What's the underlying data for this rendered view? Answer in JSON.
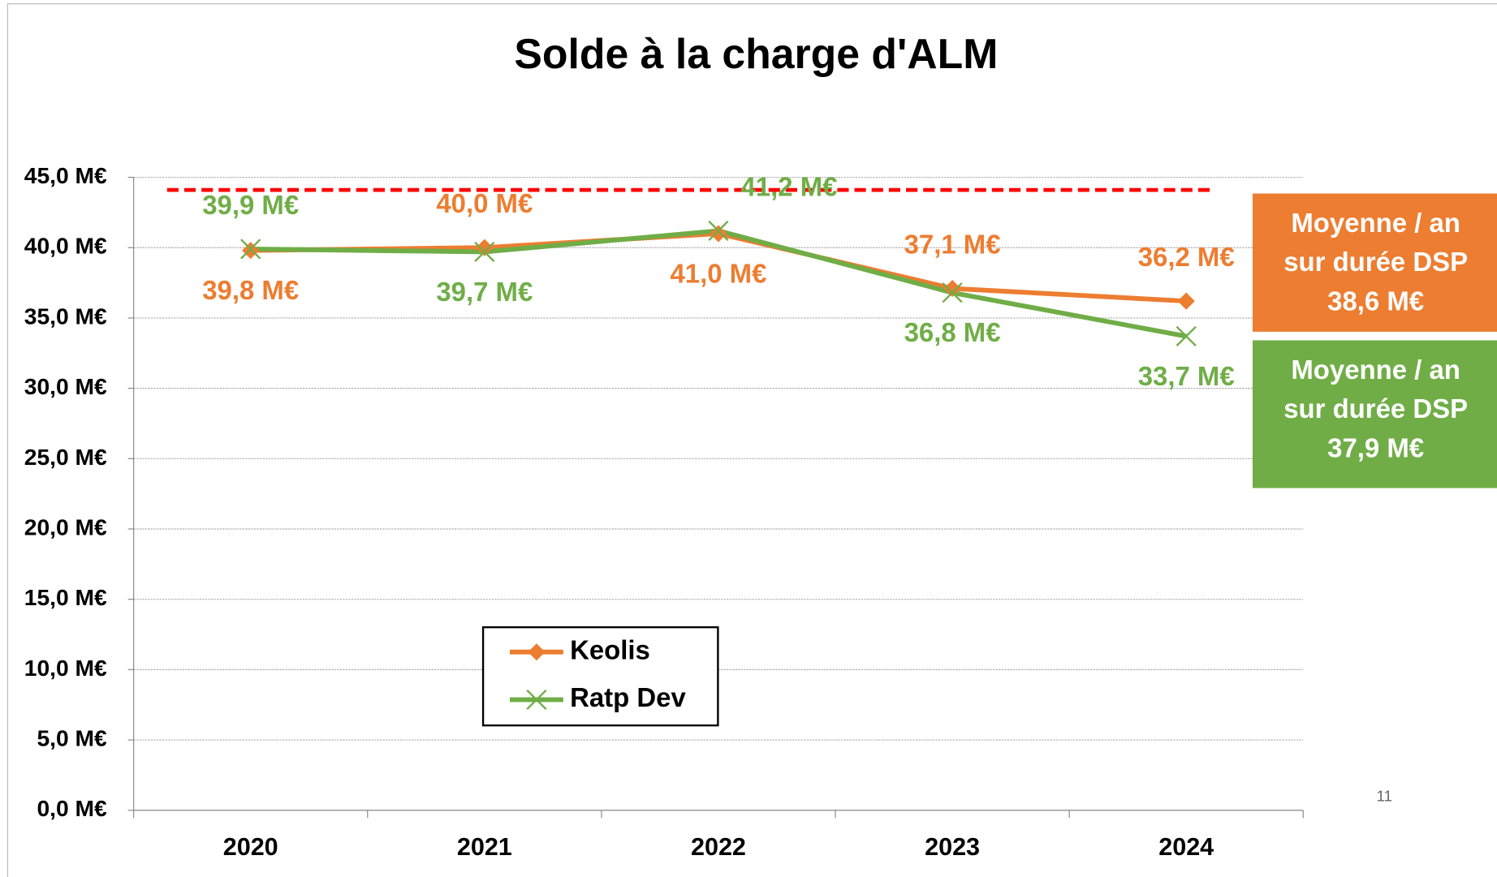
{
  "chart_data": {
    "type": "line",
    "title": "Solde à la charge d'ALM",
    "categories": [
      "2020",
      "2021",
      "2022",
      "2023",
      "2024"
    ],
    "series": [
      {
        "name": "Keolis",
        "color": "#ed7d31",
        "marker": "diamond",
        "values": [
          39.8,
          40.0,
          41.0,
          37.1,
          36.2
        ],
        "value_labels": [
          "39,8 M€",
          "40,0 M€",
          "41,0 M€",
          "37,1 M€",
          "36,2 M€"
        ]
      },
      {
        "name": "Ratp Dev",
        "color": "#70ad47",
        "marker": "x",
        "values": [
          39.9,
          39.7,
          41.2,
          36.8,
          33.7
        ],
        "value_labels": [
          "39,9 M€",
          "39,7 M€",
          "41,2 M€",
          "36,8 M€",
          "33,7 M€"
        ]
      }
    ],
    "ylim": [
      0,
      45
    ],
    "yticks": [
      {
        "value": 0,
        "label": "0,0 M€"
      },
      {
        "value": 5,
        "label": "5,0 M€"
      },
      {
        "value": 10,
        "label": "10,0 M€"
      },
      {
        "value": 15,
        "label": "15,0 M€"
      },
      {
        "value": 20,
        "label": "20,0 M€"
      },
      {
        "value": 25,
        "label": "25,0 M€"
      },
      {
        "value": 30,
        "label": "30,0 M€"
      },
      {
        "value": 35,
        "label": "35,0 M€"
      },
      {
        "value": 40,
        "label": "40,0 M€"
      },
      {
        "value": 45,
        "label": "45,0 M€"
      }
    ],
    "grid": true,
    "legend": "lower left",
    "reference_line": {
      "value": 44.1,
      "color": "#ff0000"
    },
    "annotations": [
      {
        "lines": [
          "Moyenne / an",
          "sur durée DSP",
          "38,6 M€"
        ],
        "color": "#ed7d31"
      },
      {
        "lines": [
          "Moyenne / an",
          "sur durée DSP",
          "37,9 M€"
        ],
        "color": "#70ad47"
      }
    ],
    "page_number": "11"
  }
}
